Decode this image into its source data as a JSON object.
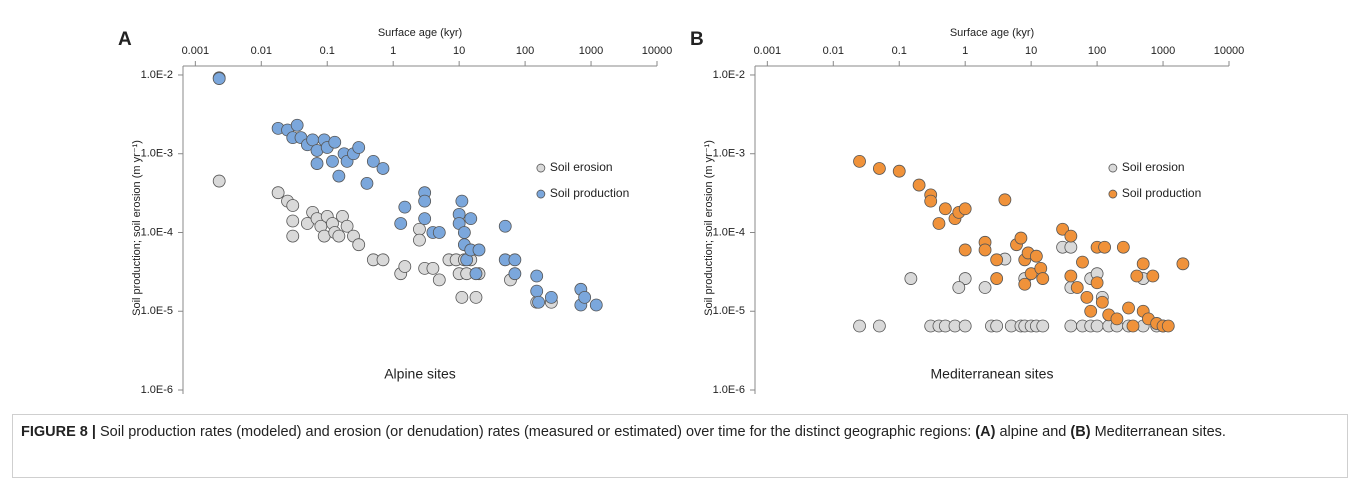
{
  "chart_data": [
    {
      "type": "scatter",
      "panel": "A",
      "xlabel": "Surface age (kyr)",
      "ylabel": "Soil production; soil erosion (m yr⁻¹)",
      "annotation": "Alpine sites",
      "xlog": true,
      "ylog": true,
      "legend": "right",
      "xlim": [
        0.00065,
        10000
      ],
      "xticks": [
        0.001,
        0.01,
        0.1,
        1,
        10,
        100,
        1000,
        10000
      ],
      "ylim": [
        1e-06,
        0.013
      ],
      "yticks": [
        {
          "value": 0.01,
          "label": "1.0E-2"
        },
        {
          "value": 0.001,
          "label": "1.0E-3"
        },
        {
          "value": 0.0001,
          "label": "1.0E-4"
        },
        {
          "value": 1e-05,
          "label": "1.0E-5"
        },
        {
          "value": 1e-06,
          "label": "1.0E-6"
        }
      ],
      "series": [
        {
          "name": "Soil erosion",
          "color": "#d9d9d9",
          "x": [
            0.0023,
            0.0023,
            0.018,
            0.025,
            0.03,
            0.03,
            0.03,
            0.05,
            0.06,
            0.07,
            0.08,
            0.09,
            0.1,
            0.12,
            0.13,
            0.15,
            0.17,
            0.2,
            0.25,
            0.3,
            0.5,
            0.7,
            1.3,
            1.5,
            2.5,
            2.5,
            3,
            4,
            5,
            7,
            9,
            10,
            11,
            12,
            13,
            15,
            18,
            20,
            60,
            150,
            250
          ],
          "values": [
            0.0092,
            0.00045,
            0.00032,
            0.00025,
            0.00022,
            0.00014,
            9e-05,
            0.00013,
            0.00018,
            0.00015,
            0.00012,
            9e-05,
            0.00016,
            0.00013,
            0.0001,
            9e-05,
            0.00016,
            0.00012,
            9e-05,
            7e-05,
            4.5e-05,
            4.5e-05,
            3e-05,
            3.7e-05,
            0.00011,
            8e-05,
            3.5e-05,
            3.5e-05,
            2.5e-05,
            4.5e-05,
            4.5e-05,
            3e-05,
            1.5e-05,
            4.5e-05,
            3e-05,
            4.5e-05,
            1.5e-05,
            3e-05,
            2.5e-05,
            1.3e-05,
            1.3e-05
          ]
        },
        {
          "name": "Soil production",
          "color": "#7ba7dc",
          "x": [
            0.0023,
            0.018,
            0.025,
            0.03,
            0.035,
            0.04,
            0.05,
            0.06,
            0.07,
            0.07,
            0.09,
            0.1,
            0.12,
            0.13,
            0.15,
            0.18,
            0.2,
            0.25,
            0.3,
            0.4,
            0.5,
            0.7,
            1.5,
            1.3,
            3,
            3,
            3,
            4,
            5,
            10,
            10,
            11,
            12,
            12,
            13,
            15,
            15,
            18,
            20,
            50,
            50,
            70,
            70,
            150,
            150,
            160,
            250,
            700,
            700,
            800,
            1200
          ],
          "values": [
            0.009,
            0.0021,
            0.002,
            0.0016,
            0.0023,
            0.0016,
            0.0013,
            0.0015,
            0.0011,
            0.00075,
            0.0015,
            0.0012,
            0.0008,
            0.0014,
            0.00052,
            0.001,
            0.0008,
            0.001,
            0.0012,
            0.00042,
            0.0008,
            0.00065,
            0.00021,
            0.00013,
            0.00032,
            0.00015,
            0.00025,
            0.0001,
            0.0001,
            0.00017,
            0.00013,
            0.00025,
            0.0001,
            7e-05,
            4.5e-05,
            0.00015,
            6e-05,
            3e-05,
            6e-05,
            0.00012,
            4.5e-05,
            4.5e-05,
            3e-05,
            2.8e-05,
            1.8e-05,
            1.3e-05,
            1.5e-05,
            1.9e-05,
            1.2e-05,
            1.5e-05,
            1.2e-05
          ]
        }
      ]
    },
    {
      "type": "scatter",
      "panel": "B",
      "xlabel": "Surface age (kyr)",
      "ylabel": "Soil production; soil erosion (m yr⁻¹)",
      "annotation": "Mediterranean sites",
      "xlog": true,
      "ylog": true,
      "legend": "right",
      "xlim": [
        0.00065,
        10000
      ],
      "xticks": [
        0.001,
        0.01,
        0.1,
        1,
        10,
        100,
        1000,
        10000
      ],
      "ylim": [
        1e-06,
        0.013
      ],
      "yticks": [
        {
          "value": 0.01,
          "label": "1.0E-2"
        },
        {
          "value": 0.001,
          "label": "1.0E-3"
        },
        {
          "value": 0.0001,
          "label": "1.0E-4"
        },
        {
          "value": 1e-05,
          "label": "1.0E-5"
        },
        {
          "value": 1e-06,
          "label": "1.0E-6"
        }
      ],
      "series": [
        {
          "name": "Soil erosion",
          "color": "#d9d9d9",
          "x": [
            0.025,
            0.05,
            0.3,
            0.4,
            0.5,
            0.7,
            1,
            2.5,
            3,
            5,
            7,
            8,
            10,
            12,
            15,
            40,
            60,
            80,
            100,
            150,
            200,
            300,
            500,
            800,
            1000,
            0.15,
            1,
            0.8,
            2,
            4,
            8,
            30,
            40,
            40,
            80,
            100,
            120,
            500
          ],
          "values": [
            6.5e-06,
            6.5e-06,
            6.5e-06,
            6.5e-06,
            6.5e-06,
            6.5e-06,
            6.5e-06,
            6.5e-06,
            6.5e-06,
            6.5e-06,
            6.5e-06,
            6.5e-06,
            6.5e-06,
            6.5e-06,
            6.5e-06,
            6.5e-06,
            6.5e-06,
            6.5e-06,
            6.5e-06,
            6.5e-06,
            6.5e-06,
            6.5e-06,
            6.5e-06,
            6.5e-06,
            6.5e-06,
            2.6e-05,
            2.6e-05,
            2e-05,
            2e-05,
            4.6e-05,
            2.6e-05,
            6.5e-05,
            6.5e-05,
            2e-05,
            2.6e-05,
            3e-05,
            1.5e-05,
            2.6e-05
          ]
        },
        {
          "name": "Soil production",
          "color": "#f0923a",
          "x": [
            0.025,
            0.05,
            0.1,
            0.2,
            0.3,
            0.3,
            0.4,
            0.5,
            0.7,
            0.8,
            1,
            1,
            2,
            2,
            3,
            3,
            4,
            6,
            7,
            8,
            8,
            9,
            10,
            12,
            14,
            15,
            30,
            40,
            40,
            50,
            60,
            70,
            80,
            100,
            100,
            120,
            130,
            150,
            200,
            250,
            300,
            350,
            400,
            500,
            500,
            600,
            700,
            800,
            1000,
            1200,
            2000
          ],
          "values": [
            0.0008,
            0.00065,
            0.0006,
            0.0004,
            0.0003,
            0.00025,
            0.00013,
            0.0002,
            0.00015,
            0.00018,
            0.0002,
            6e-05,
            7.5e-05,
            6e-05,
            4.5e-05,
            2.6e-05,
            0.00026,
            7e-05,
            8.5e-05,
            4.5e-05,
            2.2e-05,
            5.5e-05,
            3e-05,
            5e-05,
            3.5e-05,
            2.6e-05,
            0.00011,
            9e-05,
            2.8e-05,
            2e-05,
            4.2e-05,
            1.5e-05,
            1e-05,
            6.5e-05,
            2.3e-05,
            1.3e-05,
            6.5e-05,
            9e-06,
            8e-06,
            6.5e-05,
            1.1e-05,
            6.5e-06,
            2.8e-05,
            1e-05,
            4e-05,
            8e-06,
            2.8e-05,
            7e-06,
            6.5e-06,
            6.5e-06,
            4e-05
          ]
        }
      ]
    }
  ],
  "caption": [
    {
      "text": "FIGURE 8 |",
      "bold": true
    },
    {
      "text": " Soil production rates (modeled) and erosion (or denudation) rates (measured or estimated) over time for the distinct geographic regions: "
    },
    {
      "text": "(A)",
      "bold": true
    },
    {
      "text": " alpine and "
    },
    {
      "text": "(B)",
      "bold": true
    },
    {
      "text": " Mediterranean sites."
    }
  ]
}
